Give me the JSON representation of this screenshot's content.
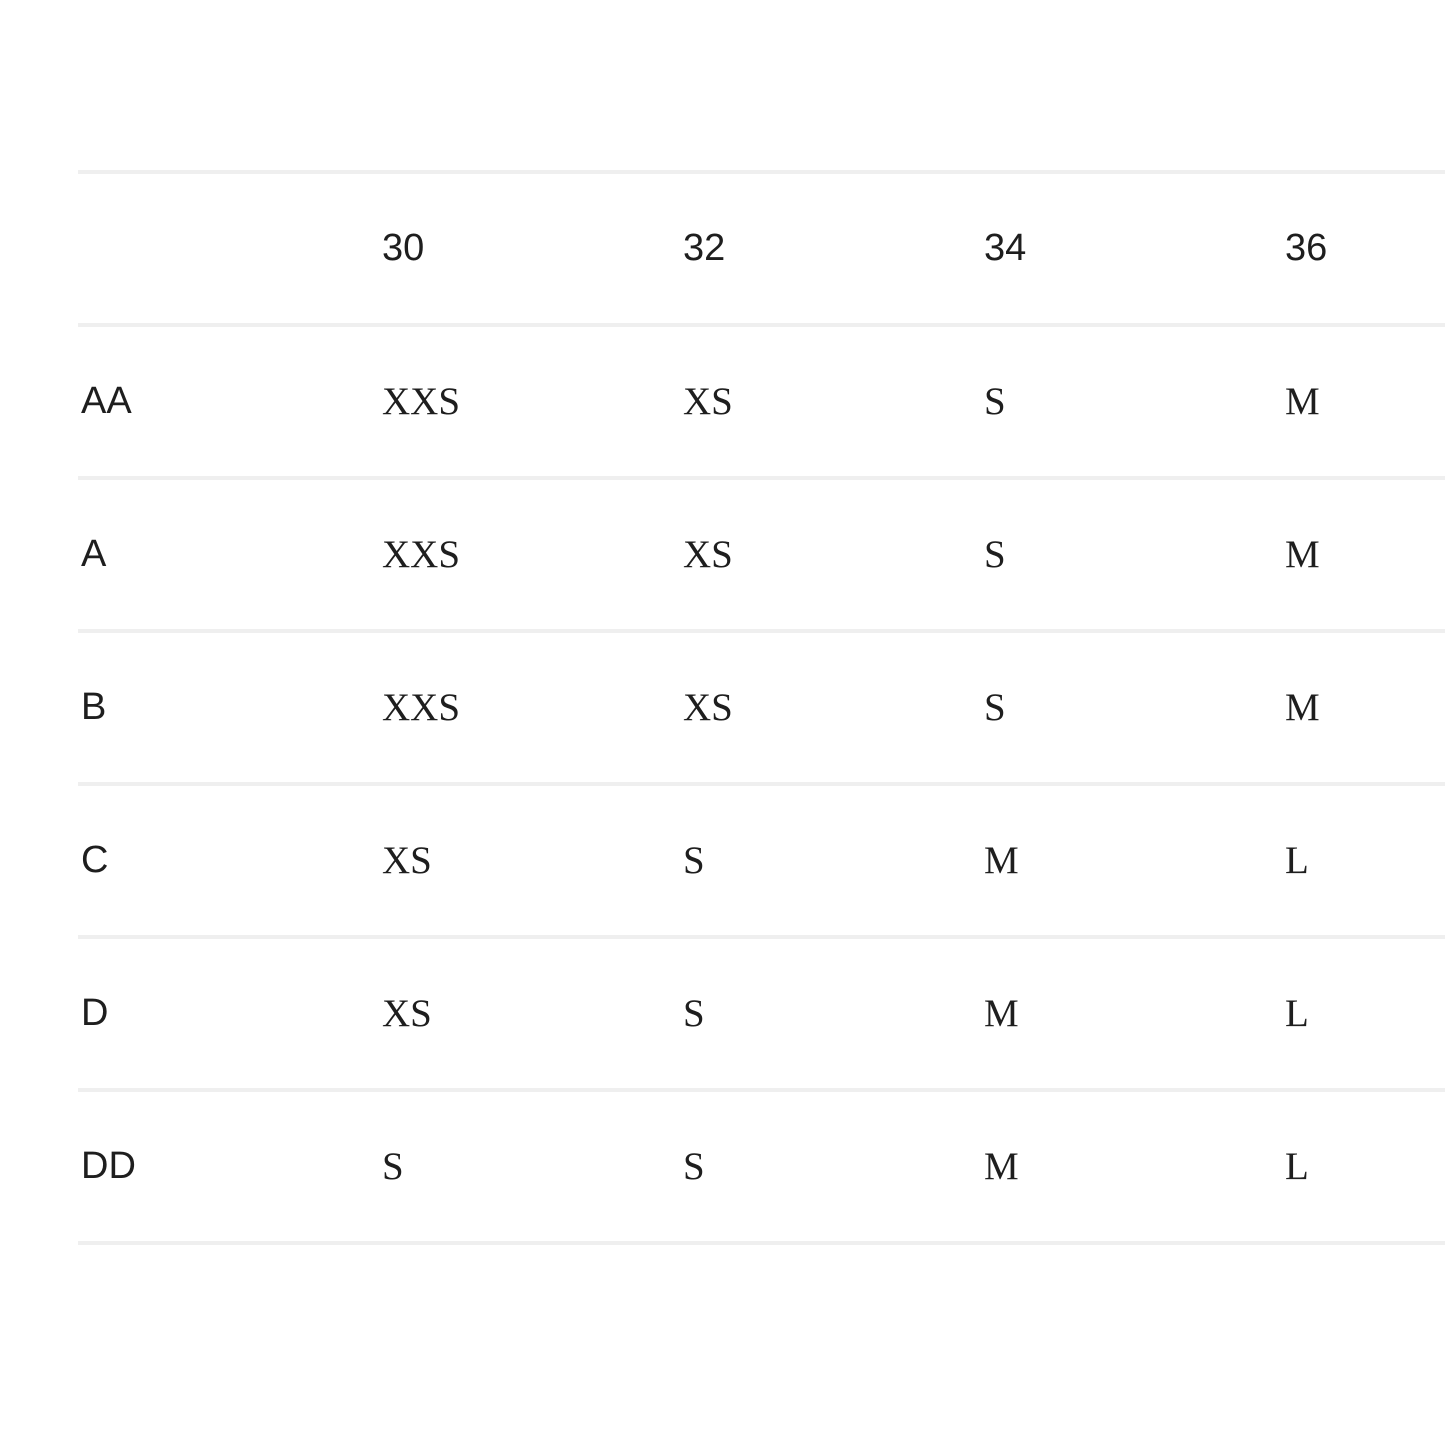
{
  "size_chart": {
    "header": [
      "",
      "30",
      "32",
      "34",
      "36"
    ],
    "rows": [
      {
        "cup": "AA",
        "sizes": [
          "XXS",
          "XS",
          "S",
          "M"
        ]
      },
      {
        "cup": "A",
        "sizes": [
          "XXS",
          "XS",
          "S",
          "M"
        ]
      },
      {
        "cup": "B",
        "sizes": [
          "XXS",
          "XS",
          "S",
          "M"
        ]
      },
      {
        "cup": "C",
        "sizes": [
          "XS",
          "S",
          "M",
          "L"
        ]
      },
      {
        "cup": "D",
        "sizes": [
          "XS",
          "S",
          "M",
          "L"
        ]
      },
      {
        "cup": "DD",
        "sizes": [
          "S",
          "S",
          "M",
          "L"
        ]
      }
    ]
  }
}
